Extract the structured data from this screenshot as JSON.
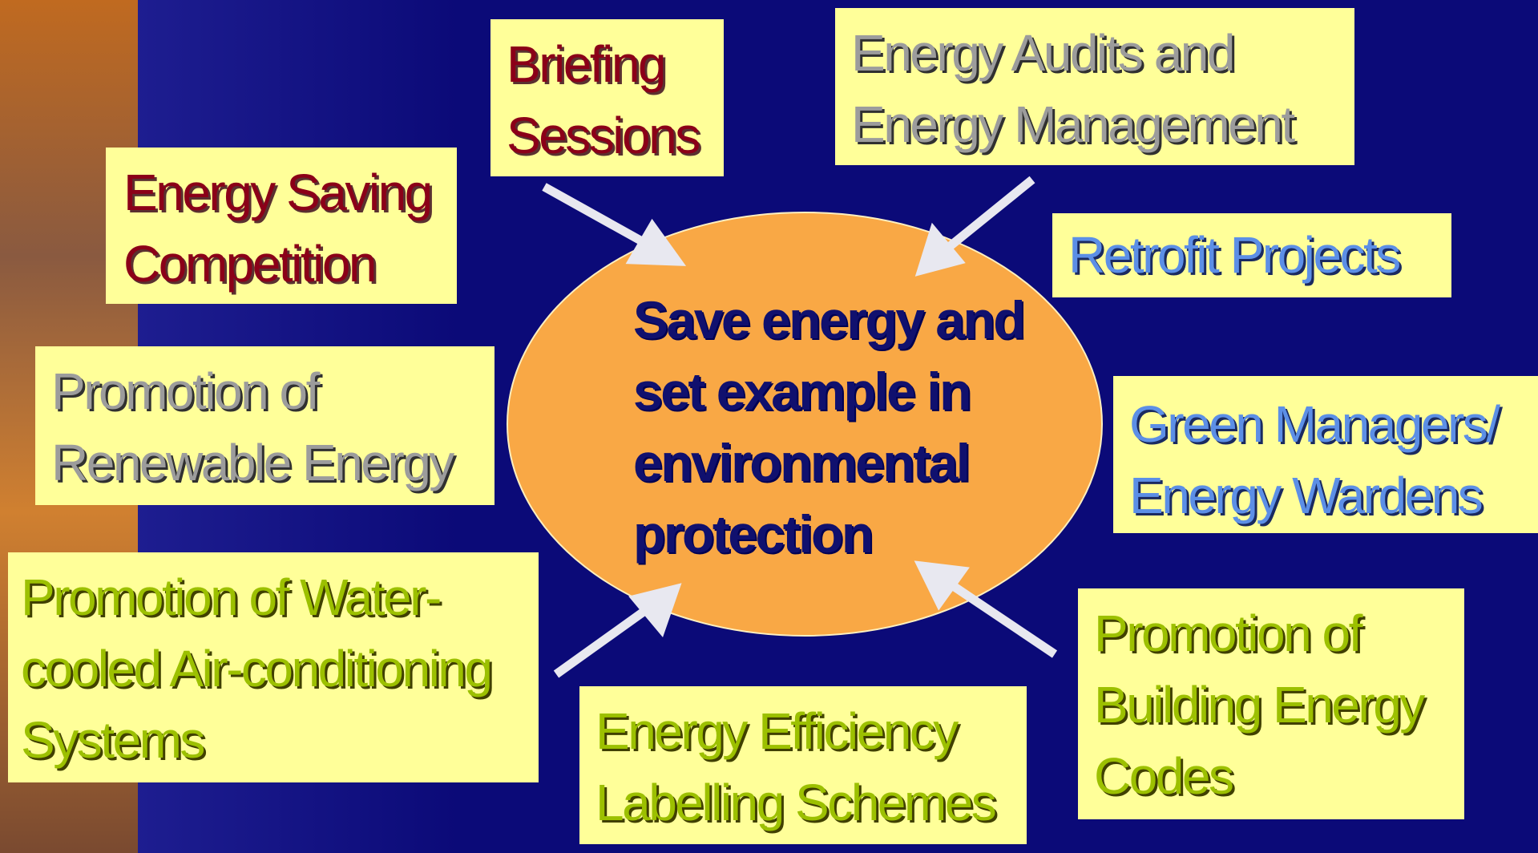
{
  "center": {
    "lines": [
      "Save energy and",
      "set example in",
      "environmental",
      "protection"
    ]
  },
  "nodes": [
    {
      "lines": [
        "Briefing",
        "Sessions"
      ]
    },
    {
      "lines": [
        "Energy Audits and",
        "Energy Management"
      ]
    },
    {
      "lines": [
        "Energy Saving",
        "Competition"
      ]
    },
    {
      "lines": [
        "Retrofit Projects"
      ]
    },
    {
      "lines": [
        "Promotion of",
        "Renewable Energy"
      ]
    },
    {
      "lines": [
        "Green Managers/",
        "Energy Wardens"
      ]
    },
    {
      "lines": [
        "Promotion of Water-",
        "cooled Air-conditioning",
        "Systems"
      ]
    },
    {
      "lines": [
        "Energy Efficiency",
        "Labelling Schemes"
      ]
    },
    {
      "lines": [
        "Promotion of",
        "Building Energy",
        "Codes"
      ]
    }
  ]
}
